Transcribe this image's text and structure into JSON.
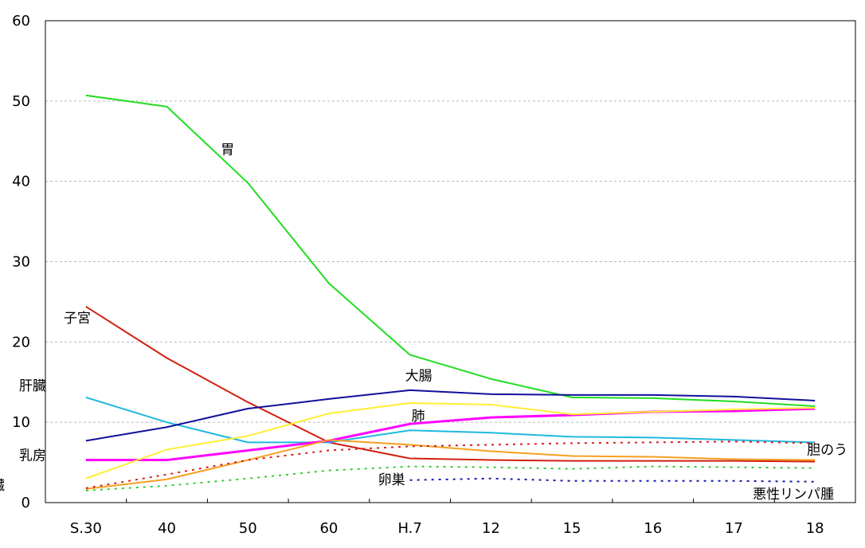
{
  "chart_data": {
    "type": "line",
    "title": "",
    "xlabel": "",
    "ylabel": "",
    "ylim": [
      0,
      60
    ],
    "yticks": [
      0,
      10,
      20,
      30,
      40,
      50,
      60
    ],
    "grid": true,
    "categories": [
      "S.30",
      "40",
      "50",
      "60",
      "H.7",
      "12",
      "15",
      "16",
      "17",
      "18"
    ],
    "series": [
      {
        "name": "胃",
        "color": "#22dd22",
        "width": 2,
        "dash": "solid",
        "values": [
          50.7,
          49.3,
          39.8,
          27.3,
          18.4,
          15.4,
          13.1,
          13.0,
          12.6,
          12.0
        ]
      },
      {
        "name": "子宮",
        "color": "#d12010",
        "width": 2,
        "dash": "solid",
        "values": [
          24.4,
          18.0,
          12.5,
          7.5,
          5.5,
          5.3,
          5.2,
          5.2,
          5.2,
          5.1
        ]
      },
      {
        "name": "肝臓",
        "color": "#20b8e0",
        "width": 2,
        "dash": "solid",
        "values": [
          13.1,
          10.0,
          7.5,
          7.5,
          9.0,
          8.7,
          8.2,
          8.1,
          7.8,
          7.5
        ]
      },
      {
        "name": "大腸",
        "color": "#10109a",
        "width": 2,
        "dash": "solid",
        "values": [
          7.7,
          9.4,
          11.7,
          12.9,
          14.0,
          13.5,
          13.4,
          13.4,
          13.2,
          12.7
        ]
      },
      {
        "name": "肺",
        "color": "#ff00ff",
        "width": 3,
        "dash": "solid",
        "values": [
          5.3,
          5.3,
          6.5,
          7.7,
          9.8,
          10.6,
          10.9,
          11.3,
          11.4,
          11.7
        ]
      },
      {
        "name": "乳房",
        "color": "#ffee33",
        "width": 2,
        "dash": "solid",
        "values": [
          3.0,
          6.6,
          8.3,
          11.1,
          12.4,
          12.2,
          11.0,
          11.3,
          11.6,
          11.8
        ]
      },
      {
        "name": "膵臓",
        "color": "#f5a020",
        "width": 2,
        "dash": "solid",
        "values": [
          1.7,
          2.9,
          5.3,
          7.8,
          7.2,
          6.4,
          5.8,
          5.7,
          5.4,
          5.3
        ]
      },
      {
        "name": "胆のう",
        "color": "#d82020",
        "width": 2,
        "dash": "dotted",
        "values": [
          1.8,
          3.5,
          5.3,
          6.5,
          7.0,
          7.2,
          7.4,
          7.5,
          7.6,
          7.4
        ]
      },
      {
        "name": "卵巣",
        "color": "#33cc33",
        "width": 2,
        "dash": "dotted",
        "values": [
          1.5,
          2.1,
          3.0,
          4.0,
          4.5,
          4.4,
          4.2,
          4.5,
          4.4,
          4.3
        ]
      },
      {
        "name": "悪性リンパ腫",
        "color": "#1a1ab0",
        "width": 2,
        "dash": "dotted",
        "values": [
          null,
          null,
          null,
          null,
          2.8,
          3.0,
          2.7,
          2.7,
          2.7,
          2.6
        ]
      }
    ],
    "annotations": [
      {
        "text": "胃",
        "x": "50",
        "y": 44
      },
      {
        "text": "子宮",
        "x": "S.30",
        "y": 23
      },
      {
        "text": "肝臓",
        "x": "S.30",
        "y": 14.6
      },
      {
        "text": "大腸",
        "x": "H.7",
        "y": 15.8
      },
      {
        "text": "肺",
        "x": "H.7",
        "y": 10.8
      },
      {
        "text": "乳房",
        "x": "S.30",
        "y": 5.9
      },
      {
        "text": "膵臓",
        "x": "S.30",
        "y": 2.2
      },
      {
        "text": "胆のう",
        "x": "18",
        "y": 6.6
      },
      {
        "text": "卵巣",
        "x": "H.7",
        "y": 2.9
      },
      {
        "text": "悪性リンパ腫",
        "x": "18",
        "y": 1.1
      }
    ]
  }
}
